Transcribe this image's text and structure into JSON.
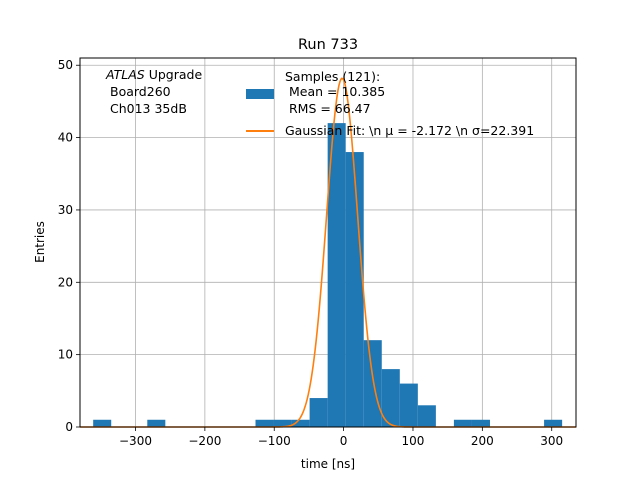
{
  "chart_data": {
    "type": "bar",
    "title": "Run 733",
    "xlabel": "time [ns]",
    "ylabel": "Entries",
    "xlim": [
      -380,
      335
    ],
    "ylim": [
      0,
      51
    ],
    "grid": true,
    "xticks": [
      -300,
      -200,
      -100,
      0,
      100,
      200,
      300
    ],
    "xtick_labels": [
      "−300",
      "−200",
      "−100",
      "0",
      "100",
      "200",
      "300"
    ],
    "yticks": [
      0,
      10,
      20,
      30,
      40,
      50
    ],
    "ytick_labels": [
      "0",
      "10",
      "20",
      "30",
      "40",
      "50"
    ],
    "histogram": {
      "color": "#1f77b4",
      "bins": [
        {
          "x0": -361,
          "x1": -335,
          "count": 1
        },
        {
          "x0": -335,
          "x1": -309,
          "count": 0
        },
        {
          "x0": -309,
          "x1": -283,
          "count": 0
        },
        {
          "x0": -283,
          "x1": -257,
          "count": 1
        },
        {
          "x0": -257,
          "x1": -231,
          "count": 0
        },
        {
          "x0": -231,
          "x1": -205,
          "count": 0
        },
        {
          "x0": -205,
          "x1": -179,
          "count": 0
        },
        {
          "x0": -179,
          "x1": -153,
          "count": 0
        },
        {
          "x0": -153,
          "x1": -127,
          "count": 0
        },
        {
          "x0": -127,
          "x1": -101,
          "count": 1
        },
        {
          "x0": -101,
          "x1": -75,
          "count": 1
        },
        {
          "x0": -75,
          "x1": -49,
          "count": 1
        },
        {
          "x0": -49,
          "x1": -23,
          "count": 4
        },
        {
          "x0": -23,
          "x1": 3,
          "count": 42
        },
        {
          "x0": 3,
          "x1": 29,
          "count": 38
        },
        {
          "x0": 29,
          "x1": 55,
          "count": 12
        },
        {
          "x0": 55,
          "x1": 81,
          "count": 8
        },
        {
          "x0": 81,
          "x1": 107,
          "count": 6
        },
        {
          "x0": 107,
          "x1": 133,
          "count": 3
        },
        {
          "x0": 133,
          "x1": 159,
          "count": 0
        },
        {
          "x0": 159,
          "x1": 185,
          "count": 1
        },
        {
          "x0": 185,
          "x1": 211,
          "count": 1
        },
        {
          "x0": 211,
          "x1": 237,
          "count": 0
        },
        {
          "x0": 237,
          "x1": 263,
          "count": 0
        },
        {
          "x0": 263,
          "x1": 289,
          "count": 0
        },
        {
          "x0": 289,
          "x1": 315,
          "count": 1
        }
      ]
    },
    "fit": {
      "color": "#ff7f0e",
      "amplitude": 48.2,
      "mu": -2.172,
      "sigma": 22.391,
      "x_range": [
        -380,
        335
      ]
    },
    "annotation_lines": [
      "ATLAS",
      " Upgrade",
      "Board260",
      "Ch013 35dB"
    ],
    "legend": {
      "placement": "top-right",
      "hist_label_lines": [
        "Samples (121):",
        " Mean = 10.385",
        " RMS = 66.47"
      ],
      "fit_label": "Gaussian Fit: \\n μ = -2.172 \\n σ=22.391"
    }
  }
}
